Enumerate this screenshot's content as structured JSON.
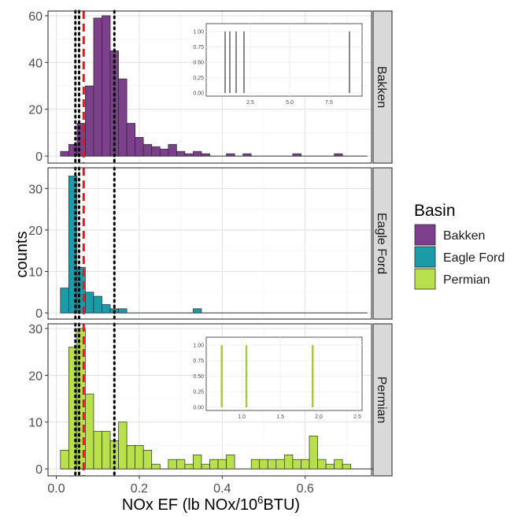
{
  "chart_data": {
    "type": "histogram",
    "xlabel_base": "NOx EF (lb NOx/10",
    "xlabel_sup": "6",
    "xlabel_tail": "BTU)",
    "ylabel": "counts",
    "xlim": [
      -0.02,
      0.76
    ],
    "x_ticks": [
      0.0,
      0.2,
      0.4,
      0.6
    ],
    "x_tick_labels": [
      "0.0",
      "0.2",
      "0.4",
      "0.6"
    ],
    "bin_start": 0.01,
    "bin_width": 0.02,
    "grid": true,
    "vlines": [
      {
        "x": 0.046,
        "style": "dotted",
        "color": "#000000"
      },
      {
        "x": 0.055,
        "style": "dotted",
        "color": "#000000"
      },
      {
        "x": 0.066,
        "style": "dashed",
        "color": "#e31a1c"
      },
      {
        "x": 0.14,
        "style": "dotted",
        "color": "#000000"
      }
    ],
    "legend": {
      "title": "Basin",
      "placement": "right",
      "items": [
        {
          "label": "Bakken",
          "color": "#7b3f8c"
        },
        {
          "label": "Eagle Ford",
          "color": "#1b9aa7"
        },
        {
          "label": "Permian",
          "color": "#b8e04a"
        }
      ]
    },
    "panels": [
      {
        "strip": "Bakken",
        "color": "#7b3f8c",
        "ylim": [
          -3,
          62
        ],
        "y_ticks": [
          0,
          20,
          40,
          60
        ],
        "y_tick_labels": [
          "0",
          "20",
          "40",
          "60"
        ],
        "counts": [
          2,
          5,
          14,
          30,
          59,
          60,
          45,
          33,
          14,
          8,
          5,
          4,
          3,
          5,
          2,
          1,
          2,
          1,
          0,
          0,
          1,
          0,
          1,
          0,
          0,
          0,
          0,
          0,
          1,
          0,
          0,
          0,
          0,
          1,
          0,
          0,
          0
        ],
        "inset": {
          "xlim": [
            0,
            9.3
          ],
          "x_ticks": [
            2.5,
            5.0,
            7.5
          ],
          "x_tick_labels": [
            "2.5",
            "5.0",
            "7.5"
          ],
          "ylim": [
            0,
            1.05
          ],
          "y_ticks": [
            0,
            0.25,
            0.5,
            0.75,
            1.0
          ],
          "y_tick_labels": [
            "0.00",
            "0.25",
            "0.50",
            "0.75",
            "1.00"
          ],
          "lines_x": [
            0.9,
            1.2,
            1.6,
            2.1,
            8.8
          ],
          "line_color": "#3a3a3a"
        }
      },
      {
        "strip": "Eagle Ford",
        "color": "#1b9aa7",
        "ylim": [
          -1.5,
          35
        ],
        "y_ticks": [
          0,
          10,
          20,
          30
        ],
        "y_tick_labels": [
          "0",
          "10",
          "20",
          "30"
        ],
        "counts": [
          6,
          33,
          11,
          5,
          4,
          2,
          1,
          1,
          0,
          0,
          0,
          0,
          0,
          0,
          0,
          0,
          1,
          0,
          0,
          0,
          0,
          0,
          0,
          0,
          0,
          0,
          0,
          0,
          0,
          0,
          0,
          0,
          0,
          0,
          0,
          0,
          0
        ],
        "inset": null
      },
      {
        "strip": "Permian",
        "color": "#b8e04a",
        "ylim": [
          -1.5,
          31
        ],
        "y_ticks": [
          0,
          10,
          20,
          30
        ],
        "y_tick_labels": [
          "0",
          "10",
          "20",
          "30"
        ],
        "counts": [
          4,
          26,
          30,
          16,
          8,
          8,
          6,
          10,
          5,
          5,
          4,
          1,
          0,
          2,
          2,
          1,
          3,
          1,
          2,
          2,
          3,
          0,
          0,
          2,
          2,
          2,
          2,
          3,
          2,
          2,
          7,
          2,
          1,
          2,
          1,
          0,
          0,
          0,
          1,
          0
        ],
        "inset": {
          "xlim": [
            0.6,
            2.5
          ],
          "x_ticks": [
            1.0,
            1.5,
            2.0,
            2.5
          ],
          "x_tick_labels": [
            "1.0",
            "1.5",
            "2.0",
            "2.5"
          ],
          "ylim": [
            0,
            1.05
          ],
          "y_ticks": [
            0,
            0.25,
            0.5,
            0.75,
            1.0
          ],
          "y_tick_labels": [
            "0.00",
            "0.25",
            "0.50",
            "0.75",
            "1.00"
          ],
          "lines_x": [
            0.74,
            1.06,
            1.92
          ],
          "line_color": "#a8c84a"
        }
      }
    ]
  }
}
